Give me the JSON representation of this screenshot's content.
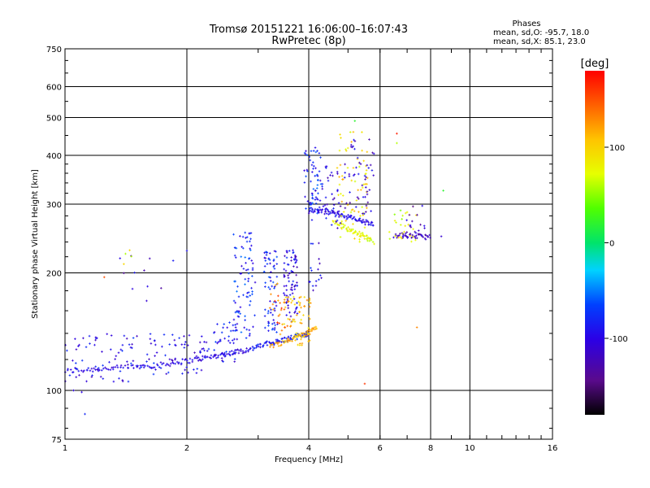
{
  "chart_data": {
    "type": "scatter",
    "title": "Tromsø 20151221 16:06:00–16:07:43",
    "subtitle": "RwPretec (8p)",
    "xlabel": "Frequency [MHz]",
    "ylabel": "Stationary phase Virtual Height [km]",
    "x_scale": "log",
    "y_scale": "log",
    "xlim": [
      1,
      16
    ],
    "ylim": [
      75,
      750
    ],
    "x_ticks": [
      1,
      2,
      4,
      6,
      8,
      10,
      16
    ],
    "x_tick_labels": [
      "1",
      "2",
      "4",
      "6",
      "8",
      "10",
      "16"
    ],
    "y_ticks": [
      75,
      100,
      200,
      300,
      400,
      500,
      600,
      750
    ],
    "y_tick_labels": [
      "75",
      "100",
      "200",
      "300",
      "400",
      "500",
      "600",
      "750"
    ],
    "grid": true,
    "phase_info": {
      "title": "Phases",
      "line1": "mean, sd,O: -95.7, 18.0",
      "line2": "mean, sd,X: 85.1, 23.0"
    },
    "colorbar": {
      "label": "[deg]",
      "range": [
        -180,
        180
      ],
      "ticks": [
        100,
        0,
        -100
      ],
      "tick_labels": [
        "100",
        "0",
        "-100"
      ]
    },
    "trace_segments": [
      {
        "x": [
          1.0,
          1.15,
          1.3,
          1.5,
          1.7,
          1.9,
          2.1,
          2.3,
          2.5,
          2.7,
          2.9
        ],
        "y": [
          112,
          113,
          114,
          115,
          116,
          118,
          120,
          122,
          124,
          126,
          128
        ],
        "phase": -100
      },
      {
        "x": [
          2.9,
          3.1,
          3.3,
          3.5,
          3.7,
          3.9,
          4.0
        ],
        "y": [
          128,
          131,
          133,
          135,
          137,
          139,
          140
        ],
        "phase": -85
      },
      {
        "x": [
          3.2,
          3.5,
          3.8,
          4.0,
          4.2
        ],
        "y": [
          130,
          133,
          138,
          141,
          146
        ],
        "phase": 115
      },
      {
        "x": [
          4.0,
          4.3,
          4.6,
          4.9,
          5.2,
          5.5,
          5.8
        ],
        "y": [
          290,
          288,
          285,
          280,
          275,
          270,
          265
        ],
        "phase": -95
      },
      {
        "x": [
          4.6,
          4.9,
          5.2,
          5.5,
          5.8
        ],
        "y": [
          270,
          262,
          255,
          248,
          240
        ],
        "phase": 75
      },
      {
        "x": [
          6.5,
          7.0,
          7.5,
          8.0
        ],
        "y": [
          250,
          249,
          248,
          247
        ],
        "phase": -120
      }
    ],
    "scatter_clusters": [
      {
        "x": [
          1.0,
          1.6
        ],
        "y": [
          105,
          140
        ],
        "n": 70,
        "phase": -95
      },
      {
        "x": [
          1.6,
          2.2
        ],
        "y": [
          110,
          140
        ],
        "n": 55,
        "phase": -95
      },
      {
        "x": [
          2.2,
          2.7
        ],
        "y": [
          118,
          150
        ],
        "n": 45,
        "phase": -90
      },
      {
        "x": [
          2.6,
          2.95
        ],
        "y": [
          135,
          255
        ],
        "n": 90,
        "phase": -80
      },
      {
        "x": [
          3.1,
          3.35
        ],
        "y": [
          140,
          230
        ],
        "n": 70,
        "phase": -85
      },
      {
        "x": [
          3.45,
          3.75
        ],
        "y": [
          150,
          230
        ],
        "n": 80,
        "phase": -100
      },
      {
        "x": [
          3.4,
          4.05
        ],
        "y": [
          130,
          175
        ],
        "n": 70,
        "phase": 110
      },
      {
        "x": [
          3.2,
          3.6
        ],
        "y": [
          145,
          190
        ],
        "n": 20,
        "phase": 140
      },
      {
        "x": [
          3.9,
          4.3
        ],
        "y": [
          280,
          420
        ],
        "n": 60,
        "phase": -80
      },
      {
        "x": [
          4.0,
          4.3
        ],
        "y": [
          170,
          330
        ],
        "n": 25,
        "phase": -100
      },
      {
        "x": [
          4.3,
          5.0
        ],
        "y": [
          260,
          380
        ],
        "n": 45,
        "phase": -105
      },
      {
        "x": [
          4.7,
          5.6
        ],
        "y": [
          240,
          460
        ],
        "n": 70,
        "phase": 90
      },
      {
        "x": [
          5.0,
          5.8
        ],
        "y": [
          280,
          440
        ],
        "n": 45,
        "phase": -110
      },
      {
        "x": [
          6.3,
          7.4
        ],
        "y": [
          240,
          290
        ],
        "n": 25,
        "phase": 70
      },
      {
        "x": [
          6.8,
          7.8
        ],
        "y": [
          245,
          300
        ],
        "n": 20,
        "phase": -120
      },
      {
        "x": [
          1.35,
          1.75
        ],
        "y": [
          160,
          230
        ],
        "n": 10,
        "phase": -110
      },
      {
        "x": [
          1.3,
          1.5
        ],
        "y": [
          190,
          250
        ],
        "n": 4,
        "phase": 80
      }
    ],
    "outliers": [
      {
        "x": 1.12,
        "y": 87,
        "phase": -80
      },
      {
        "x": 1.05,
        "y": 100,
        "phase": -100
      },
      {
        "x": 1.1,
        "y": 99,
        "phase": -100
      },
      {
        "x": 1.25,
        "y": 195,
        "phase": 150
      },
      {
        "x": 5.5,
        "y": 104,
        "phase": 160
      },
      {
        "x": 6.6,
        "y": 455,
        "phase": 170
      },
      {
        "x": 6.6,
        "y": 430,
        "phase": 60
      },
      {
        "x": 8.6,
        "y": 325,
        "phase": 20
      },
      {
        "x": 8.5,
        "y": 248,
        "phase": -110
      },
      {
        "x": 7.4,
        "y": 145,
        "phase": 130
      },
      {
        "x": 5.2,
        "y": 490,
        "phase": 20
      },
      {
        "x": 2.0,
        "y": 228,
        "phase": -90
      },
      {
        "x": 1.85,
        "y": 215,
        "phase": -85
      }
    ]
  }
}
